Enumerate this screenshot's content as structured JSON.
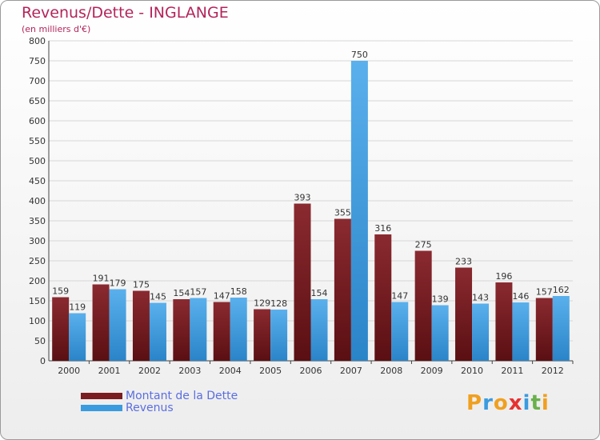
{
  "chart_data": {
    "type": "bar",
    "title": "Revenus/Dette - INGLANGE",
    "subtitle": "(en milliers d'€)",
    "categories": [
      "2000",
      "2001",
      "2002",
      "2003",
      "2004",
      "2005",
      "2006",
      "2007",
      "2008",
      "2009",
      "2010",
      "2011",
      "2012"
    ],
    "series": [
      {
        "name": "Montant de la Dette",
        "color": "#7a1c20",
        "values": [
          159,
          191,
          175,
          154,
          147,
          129,
          393,
          355,
          316,
          275,
          233,
          196,
          157
        ]
      },
      {
        "name": "Revenus",
        "color": "#3a9be0",
        "values": [
          119,
          179,
          145,
          157,
          158,
          128,
          154,
          750,
          147,
          139,
          143,
          146,
          162
        ]
      }
    ],
    "ylim": [
      0,
      800
    ],
    "yticks": [
      0,
      50,
      100,
      150,
      200,
      250,
      300,
      350,
      400,
      450,
      500,
      550,
      600,
      650,
      700,
      750,
      800
    ],
    "grid": true,
    "legend": "bottom-left"
  },
  "logo": {
    "text": "Proxiti",
    "letter_colors": [
      "#f0a020",
      "#3a9be0",
      "#f0a020",
      "#e83030",
      "#3a9be0",
      "#6ab04c",
      "#f0a020"
    ]
  }
}
